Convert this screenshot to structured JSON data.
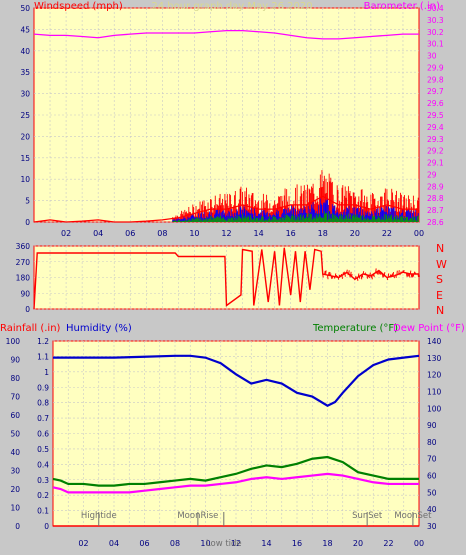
{
  "title": "24 hour graph day   May 26 2020",
  "colors": {
    "plot_bg": "#ffffc0",
    "frame": "#ff0000",
    "grid": "#c8c8c8",
    "title": "#d8d890",
    "windspeed": "#ff0000",
    "gust_blue": "#0000ff",
    "gust_green": "#00a000",
    "barometer": "#ff00ff",
    "direction": "#ff0000",
    "humidity": "#0000cc",
    "temperature": "#008000",
    "dewpoint": "#ff00ff",
    "sun_moon": "#707070"
  },
  "time_ticks": [
    "02",
    "04",
    "06",
    "08",
    "10",
    "12",
    "14",
    "16",
    "18",
    "20",
    "22",
    "00"
  ],
  "direction_letters": [
    "N",
    "W",
    "S",
    "E",
    "N"
  ],
  "chart_data": [
    {
      "type": "line",
      "name": "wind-and-barometer",
      "x_unit": "hour",
      "ylabel": "Windspeed (mph)",
      "y2label": "Barometer (.in)",
      "ylim": [
        0,
        50
      ],
      "y_ticks": [
        "0",
        "5",
        "10",
        "15",
        "20",
        "25",
        "30",
        "35",
        "40",
        "45",
        "50"
      ],
      "y2lim": [
        28.6,
        30.4
      ],
      "y2_ticks": [
        "28.6",
        "28.7",
        "28.8",
        "28.9",
        "29",
        "29.1",
        "29.2",
        "29.3",
        "29.4",
        "29.5",
        "29.6",
        "29.7",
        "29.8",
        "29.9",
        "30",
        "30.1",
        "30.2",
        "30.3",
        "30.4"
      ],
      "series": [
        {
          "name": "Windspeed (mph)",
          "axis": "left",
          "x": [
            0,
            1,
            2,
            3,
            4,
            5,
            6,
            7,
            8,
            9,
            10,
            11,
            12,
            13,
            14,
            15,
            16,
            17,
            18,
            19,
            20,
            21,
            22,
            23,
            24
          ],
          "y": [
            0,
            0.5,
            0,
            0.2,
            0.5,
            0,
            0,
            0.2,
            0.5,
            1,
            2,
            3,
            3,
            4,
            3,
            3,
            4,
            4,
            6,
            4,
            4,
            3,
            4,
            3,
            3
          ]
        },
        {
          "name": "Barometer (.in)",
          "axis": "right",
          "x": [
            0,
            1,
            2,
            3,
            4,
            5,
            6,
            7,
            8,
            9,
            10,
            11,
            12,
            13,
            14,
            15,
            16,
            17,
            18,
            19,
            20,
            21,
            22,
            23,
            24
          ],
          "y": [
            30.18,
            30.17,
            30.17,
            30.16,
            30.15,
            30.17,
            30.18,
            30.19,
            30.19,
            30.19,
            30.19,
            30.2,
            30.21,
            30.21,
            30.2,
            30.19,
            30.17,
            30.15,
            30.14,
            30.14,
            30.15,
            30.16,
            30.17,
            30.18,
            30.18
          ]
        }
      ]
    },
    {
      "type": "line",
      "name": "wind-direction",
      "x_unit": "hour",
      "ylim": [
        0,
        360
      ],
      "y_ticks": [
        "0",
        "90",
        "180",
        "270",
        "360"
      ],
      "series": [
        {
          "name": "Wind direction",
          "x": [
            0,
            0.2,
            8.8,
            9.0,
            11.9,
            12.0,
            12.9,
            13.0,
            13.6,
            13.7,
            14.2,
            14.6,
            15.0,
            15.3,
            15.6,
            16.0,
            16.3,
            16.6,
            16.9,
            17.2,
            17.5,
            17.9,
            18.0,
            18.5,
            19.0,
            19.5,
            20.0,
            20.5,
            21.0,
            21.5,
            22.0,
            22.5,
            23.0,
            23.5,
            24.0
          ],
          "y": [
            0,
            320,
            320,
            300,
            300,
            20,
            80,
            340,
            330,
            20,
            340,
            40,
            330,
            20,
            350,
            80,
            330,
            40,
            330,
            110,
            340,
            330,
            200,
            190,
            180,
            210,
            170,
            200,
            190,
            220,
            180,
            190,
            210,
            200,
            200
          ]
        }
      ]
    },
    {
      "type": "line",
      "name": "humidity-temperature",
      "x_unit": "hour",
      "ylabel": "Rainfall (.in)",
      "ylabel2": "Humidity (%)",
      "y2label": "Temperature (°F)",
      "y2label2": "Dew Point (°F)",
      "ylim": [
        0,
        1.2
      ],
      "y_ticks": [
        "0",
        "0.1",
        "0.2",
        "0.3",
        "0.4",
        "0.5",
        "0.6",
        "0.7",
        "0.8",
        "0.9",
        "1",
        "1.1",
        "1.2"
      ],
      "humidity_lim": [
        0,
        100
      ],
      "humidity_ticks": [
        "0",
        "10",
        "20",
        "30",
        "40",
        "50",
        "60",
        "70",
        "80",
        "90",
        "100"
      ],
      "y2lim": [
        30,
        140
      ],
      "y2_ticks": [
        "30",
        "40",
        "50",
        "60",
        "70",
        "80",
        "90",
        "100",
        "110",
        "120",
        "130",
        "140"
      ],
      "series": [
        {
          "name": "Humidity (%)",
          "axis": "humidity",
          "x": [
            0,
            2,
            4,
            6,
            8,
            9,
            10,
            11,
            12,
            13,
            14,
            15,
            16,
            17,
            18,
            18.5,
            19,
            20,
            21,
            22,
            23,
            24
          ],
          "y": [
            91,
            91,
            91,
            91.5,
            92,
            92,
            91,
            88,
            82,
            77,
            79,
            77,
            72,
            70,
            65,
            67,
            72,
            81,
            87,
            90,
            91,
            92
          ]
        },
        {
          "name": "Temperature (°F)",
          "axis": "right",
          "x": [
            0,
            0.5,
            1,
            2,
            3,
            4,
            5,
            6,
            7,
            8,
            9,
            10,
            11,
            12,
            13,
            14,
            15,
            16,
            17,
            18,
            19,
            20,
            21,
            22,
            23,
            24
          ],
          "y": [
            58,
            57,
            55,
            55,
            54,
            54,
            55,
            55,
            56,
            57,
            58,
            57,
            59,
            61,
            64,
            66,
            65,
            67,
            70,
            71,
            68,
            62,
            60,
            58,
            58,
            58
          ]
        },
        {
          "name": "Dew Point (°F)",
          "axis": "right",
          "x": [
            0,
            0.5,
            1,
            2,
            3,
            4,
            5,
            6,
            7,
            8,
            9,
            10,
            11,
            12,
            13,
            14,
            15,
            16,
            17,
            18,
            19,
            20,
            21,
            22,
            23,
            24
          ],
          "y": [
            53,
            52,
            50,
            50,
            50,
            50,
            50,
            51,
            52,
            53,
            54,
            54,
            55,
            56,
            58,
            59,
            58,
            59,
            60,
            61,
            60,
            58,
            56,
            55,
            55,
            55
          ]
        },
        {
          "name": "Rainfall (.in)",
          "axis": "left",
          "x": [
            0,
            24
          ],
          "y": [
            0,
            0
          ]
        }
      ],
      "events": [
        {
          "label": "Hightide",
          "x": 3.0
        },
        {
          "label": "MoonRise",
          "x": 9.5
        },
        {
          "label": "Low tide",
          "x": 11.2
        },
        {
          "label": "SunSet",
          "x": 20.6
        },
        {
          "label": "MoonSet",
          "x": 23.6
        }
      ]
    }
  ]
}
